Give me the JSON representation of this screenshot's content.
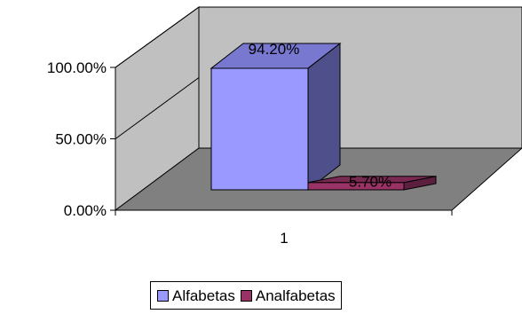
{
  "chart_data": {
    "type": "bar",
    "categories": [
      "1"
    ],
    "series": [
      {
        "name": "Alfabetas",
        "values": [
          94.2
        ],
        "label": "94.20%",
        "color": "#9999ff",
        "side_color": "#4f4f8c",
        "top_color": "#7878d0"
      },
      {
        "name": "Analfabetas",
        "values": [
          5.7
        ],
        "label": "5.70%",
        "color": "#993366",
        "side_color": "#5c1f3d",
        "top_color": "#7a2952"
      }
    ],
    "y_ticks": [
      "0.00%",
      "50.00%",
      "100.00%"
    ],
    "y_tick_values": [
      0,
      50,
      100
    ],
    "ylim": [
      0,
      100
    ],
    "grid": false,
    "legend_position": "bottom",
    "colors": {
      "walls": "#c0c0c0",
      "floor": "#808080",
      "outline": "#000000"
    }
  }
}
